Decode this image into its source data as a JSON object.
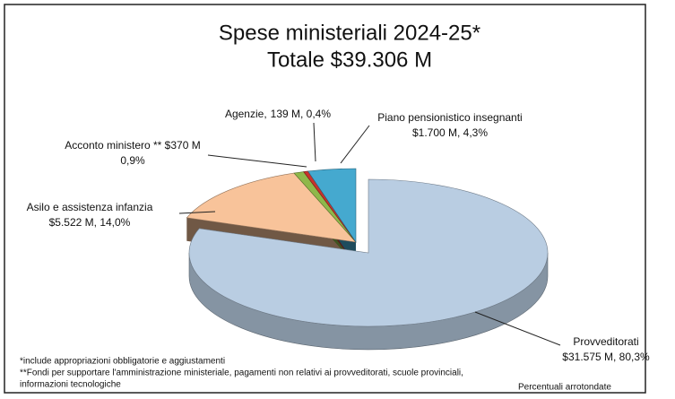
{
  "chart_data": {
    "type": "pie",
    "title": "Spese ministeriali 2024-25*",
    "subtitle": "Totale $39.306 M",
    "categories": [
      "Provveditorati",
      "Asilo e assistenza infanzia",
      "Acconto ministero ** $370 M",
      "Agenzie,",
      "Piano pensionistico insegnanti"
    ],
    "values": [
      80.3,
      14.0,
      0.9,
      0.4,
      4.3
    ],
    "value_labels": [
      "$31.575 M, 80,3%",
      "$5.522 M, 14,0%",
      "0,9%",
      "139 M, 0,4%",
      "$1.700 M, 4,3%"
    ],
    "colors": [
      "#b9cde2",
      "#f8c39a",
      "#8fb84a",
      "#c8322c",
      "#45a9cf"
    ],
    "footnotes": [
      "*include appropriazioni obbligatorie e aggiustamenti",
      "**Fondi per supportare l'amministrazione ministeriale, pagamenti non relativi ai provveditorati, scuole provinciali,",
      "informazioni tecnologiche"
    ],
    "note": "Percentuali arrotondate"
  }
}
